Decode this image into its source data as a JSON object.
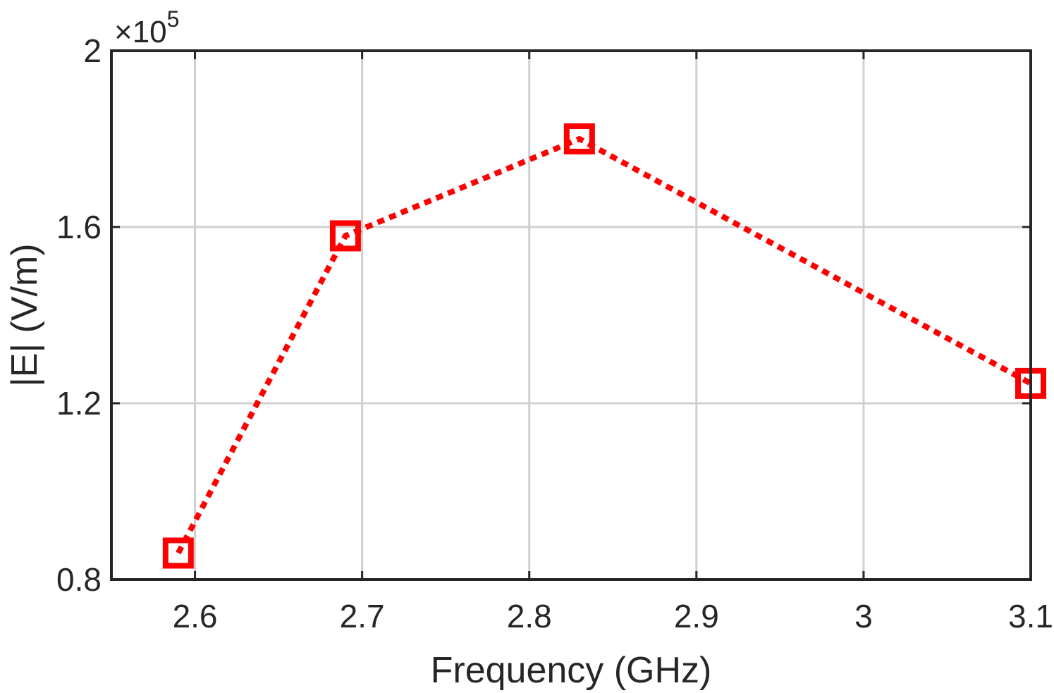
{
  "chart_data": {
    "type": "line",
    "title": "",
    "xlabel": "Frequency (GHz)",
    "ylabel": "|E| (V/m)",
    "y_multiplier_base": "×10",
    "y_multiplier_exponent": "5",
    "xlim": [
      2.55,
      3.1
    ],
    "ylim": [
      0.8,
      2.0
    ],
    "x_ticks": [
      2.6,
      2.7,
      2.8,
      2.9,
      3.0,
      3.1
    ],
    "x_tick_labels": [
      "2.6",
      "2.7",
      "2.8",
      "2.9",
      "3",
      "3.1"
    ],
    "y_ticks": [
      0.8,
      1.2,
      1.6,
      2.0
    ],
    "y_tick_labels": [
      "0.8",
      "1.2",
      "1.6",
      "2"
    ],
    "grid": true,
    "legend": "none",
    "series": [
      {
        "x": [
          2.59,
          2.69,
          2.83,
          3.1
        ],
        "y": [
          0.86,
          1.58,
          1.8,
          1.245
        ],
        "color": "#ff0000",
        "line_style": "dotted",
        "marker": "square"
      }
    ]
  }
}
